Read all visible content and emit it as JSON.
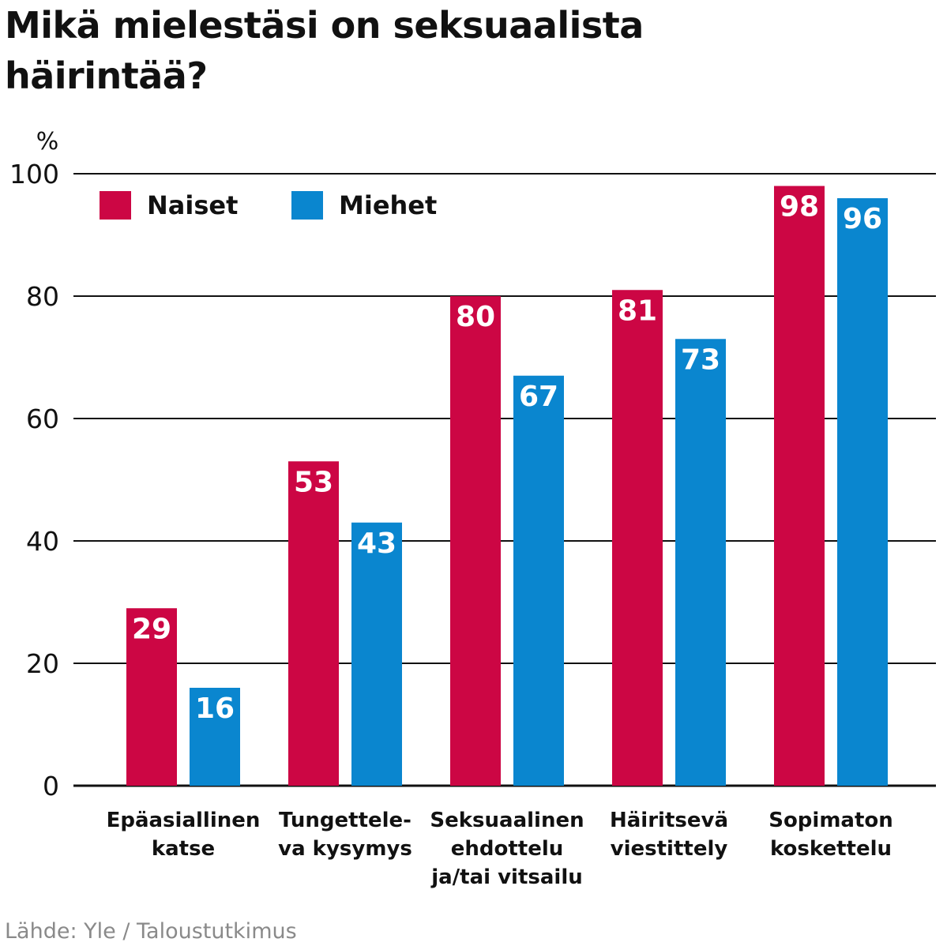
{
  "title_line1": "Mikä mielestäsi on seksuaalista",
  "title_line2": "häirintää?",
  "source": "Lähde: Yle / Taloustutkimus",
  "colors": {
    "naiset": "#cc0644",
    "miehet": "#0a86cf",
    "grid": "#111111",
    "bar_label": "#ffffff"
  },
  "chart_data": {
    "type": "bar",
    "ylabel": "%",
    "ylim": [
      0,
      100
    ],
    "yticks": [
      0,
      20,
      40,
      60,
      80,
      100
    ],
    "grid": true,
    "legend_position": "top-left",
    "categories": [
      [
        "Epäasiallinen",
        "katse"
      ],
      [
        "Tungettele-",
        "va kysymys"
      ],
      [
        "Seksuaalinen",
        "ehdottelu",
        "ja/tai vitsailu"
      ],
      [
        "Häiritsevä",
        "viestittely"
      ],
      [
        "Sopimaton",
        "koskettelu"
      ]
    ],
    "series": [
      {
        "name": "Naiset",
        "color": "#cc0644",
        "values": [
          29,
          53,
          80,
          81,
          98
        ]
      },
      {
        "name": "Miehet",
        "color": "#0a86cf",
        "values": [
          16,
          43,
          67,
          73,
          96
        ]
      }
    ]
  }
}
